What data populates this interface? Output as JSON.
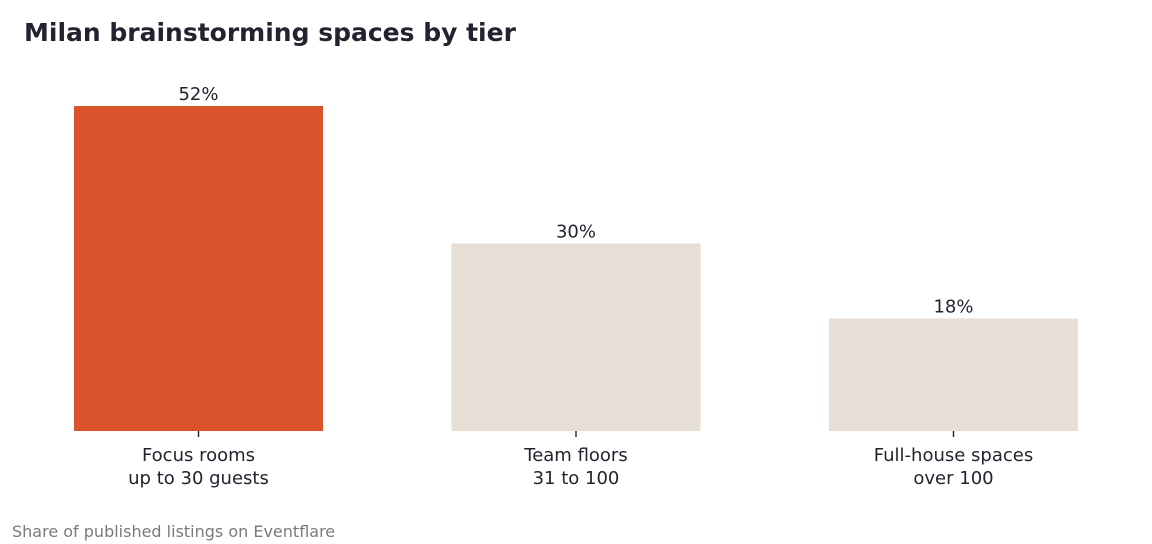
{
  "chart_data": {
    "type": "bar",
    "title": "Milan brainstorming spaces by tier",
    "footnote": "Share of published listings on Eventflare",
    "categories": [
      [
        "Focus rooms",
        "up to 30 guests"
      ],
      [
        "Team floors",
        "31 to 100"
      ],
      [
        "Full-house spaces",
        "over 100"
      ]
    ],
    "values": [
      52,
      30,
      18
    ],
    "value_labels": [
      "52%",
      "30%",
      "18%"
    ],
    "unit": "%",
    "ylim": [
      0,
      60
    ],
    "grid": false,
    "highlight_index": 0,
    "colors": {
      "highlight": "#d9532c",
      "muted": "#e7ded5",
      "text": "#22232f",
      "footnote": "#7a7a7a"
    }
  }
}
